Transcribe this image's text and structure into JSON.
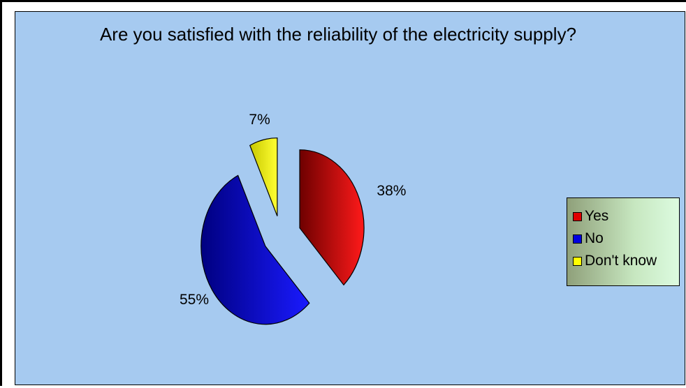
{
  "chart_data": {
    "type": "pie",
    "title": "Are you satisfied with the reliability of the electricity supply?",
    "categories": [
      "Yes",
      "No",
      "Don't know"
    ],
    "values": [
      38,
      55,
      7
    ],
    "labels": [
      "38%",
      "55%",
      "7%"
    ],
    "colors": [
      "#e00000",
      "#0000e0",
      "#ffff00"
    ],
    "exploded": true,
    "legend": "right"
  }
}
